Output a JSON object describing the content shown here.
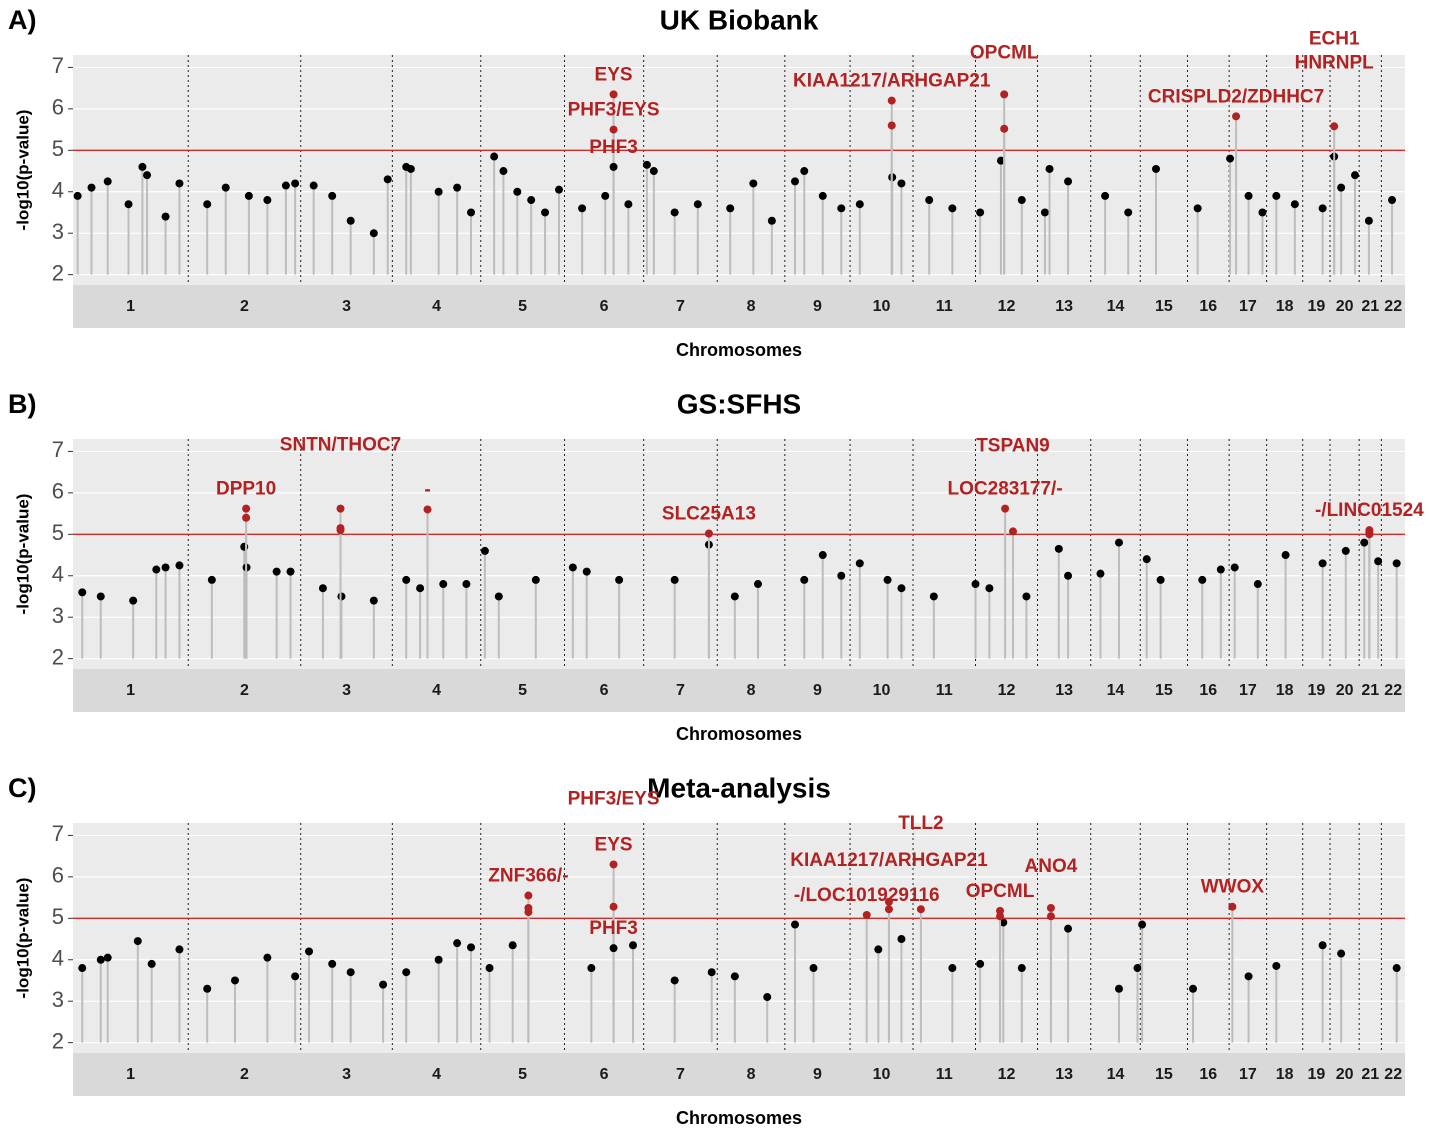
{
  "chart_data": [
    {
      "type": "manhattan",
      "panel_label": "A)",
      "title": "UK Biobank",
      "ylabel": "-log10(p-value)",
      "xlabel": "Chromosomes",
      "xlim": [
        0,
        2878
      ],
      "ylim": [
        1.75,
        7.3
      ],
      "yticks": [
        2,
        3,
        4,
        5,
        6,
        7
      ],
      "xticks": [
        {
          "value": 124.5,
          "label": "1"
        },
        {
          "value": 370.5,
          "label": "2"
        },
        {
          "value": 591,
          "label": "3"
        },
        {
          "value": 785.5,
          "label": "4"
        },
        {
          "value": 971.5,
          "label": "5"
        },
        {
          "value": 1147.5,
          "label": "6"
        },
        {
          "value": 1312.5,
          "label": "7"
        },
        {
          "value": 1465,
          "label": "8"
        },
        {
          "value": 1608.5,
          "label": "9"
        },
        {
          "value": 1747,
          "label": "10"
        },
        {
          "value": 1882.5,
          "label": "11"
        },
        {
          "value": 2017,
          "label": "12"
        },
        {
          "value": 2141.5,
          "label": "13"
        },
        {
          "value": 2252.5,
          "label": "14"
        },
        {
          "value": 2357,
          "label": "15"
        },
        {
          "value": 2453,
          "label": "16"
        },
        {
          "value": 2538.5,
          "label": "17"
        },
        {
          "value": 2618,
          "label": "18"
        },
        {
          "value": 2686.5,
          "label": "19"
        },
        {
          "value": 2747.5,
          "label": "20"
        },
        {
          "value": 2803,
          "label": "21"
        },
        {
          "value": 2852.5,
          "label": "22"
        }
      ],
      "chromosome_boundaries": [
        249,
        492,
        690,
        881,
        1062,
        1233,
        1392,
        1538,
        1679,
        1815,
        1950,
        2084,
        2199,
        2306,
        2408,
        2498,
        2579,
        2657,
        2716,
        2779,
        2827
      ],
      "threshold": 5,
      "threshold_color": "#d22b2b",
      "color": "#000000",
      "highlight_color": "#b22222",
      "points": {
        "x": [
          10,
          40,
          75,
          120,
          150,
          160,
          200,
          230,
          290,
          330,
          380,
          420,
          460,
          480,
          520,
          560,
          600,
          650,
          680,
          720,
          730,
          790,
          830,
          860,
          910,
          930,
          960,
          990,
          1020,
          1050,
          1100,
          1150,
          1200,
          1240,
          1255,
          1300,
          1350,
          1420,
          1470,
          1510,
          1560,
          1580,
          1620,
          1660,
          1700,
          1770,
          1790,
          1850,
          1900,
          1960,
          2005,
          2050,
          2100,
          2110,
          2150,
          2230,
          2280,
          2340,
          2430,
          2500,
          2540,
          2570,
          2600,
          2640,
          2700,
          2725,
          2740,
          2770,
          2800,
          2850
        ],
        "values": [
          3.9,
          4.1,
          4.25,
          3.7,
          4.6,
          4.4,
          3.4,
          4.2,
          3.7,
          4.1,
          3.9,
          3.8,
          4.15,
          4.2,
          4.15,
          3.9,
          3.3,
          3.0,
          4.3,
          4.6,
          4.55,
          4.0,
          4.1,
          3.5,
          4.85,
          4.5,
          4.0,
          3.8,
          3.5,
          4.05,
          3.6,
          3.9,
          3.7,
          4.65,
          4.5,
          3.5,
          3.7,
          3.6,
          4.2,
          3.3,
          4.25,
          4.5,
          3.9,
          3.6,
          3.7,
          4.35,
          4.2,
          3.8,
          3.6,
          3.5,
          4.75,
          3.8,
          3.5,
          4.55,
          4.25,
          3.9,
          3.5,
          4.55,
          3.6,
          4.8,
          3.9,
          3.5,
          3.9,
          3.7,
          3.6,
          4.85,
          4.1,
          4.4,
          3.3,
          3.8
        ]
      },
      "hits": [
        {
          "label": "EYS",
          "x": 1168,
          "y": 6.35
        },
        {
          "label": "PHF3/EYS",
          "x": 1168,
          "y": 5.5
        },
        {
          "label": "PHF3",
          "x": 1168,
          "y": 4.6
        },
        {
          "label": "KIAA1217/ARHGAP21",
          "x": 1769,
          "y": 6.2
        },
        {
          "label": null,
          "x": 1769,
          "y": 5.6
        },
        {
          "label": "OPCML",
          "x": 2012,
          "y": 6.35
        },
        {
          "label": null,
          "x": 2012,
          "y": 5.52
        },
        {
          "label": "CRISPLD2/ZDHHC7",
          "x": 2513,
          "y": 5.82
        },
        {
          "label": [
            "ECH1",
            "HNRNPL"
          ],
          "x": 2725,
          "y": 5.58
        }
      ]
    },
    {
      "type": "manhattan",
      "panel_label": "B)",
      "title": "GS:SFHS",
      "ylabel": "-log10(p-value)",
      "xlabel": "Chromosomes",
      "xlim": [
        0,
        2878
      ],
      "ylim": [
        1.75,
        7.3
      ],
      "yticks": [
        2,
        3,
        4,
        5,
        6,
        7
      ],
      "xticks": [
        {
          "value": 124.5,
          "label": "1"
        },
        {
          "value": 370.5,
          "label": "2"
        },
        {
          "value": 591,
          "label": "3"
        },
        {
          "value": 785.5,
          "label": "4"
        },
        {
          "value": 971.5,
          "label": "5"
        },
        {
          "value": 1147.5,
          "label": "6"
        },
        {
          "value": 1312.5,
          "label": "7"
        },
        {
          "value": 1465,
          "label": "8"
        },
        {
          "value": 1608.5,
          "label": "9"
        },
        {
          "value": 1747,
          "label": "10"
        },
        {
          "value": 1882.5,
          "label": "11"
        },
        {
          "value": 2017,
          "label": "12"
        },
        {
          "value": 2141.5,
          "label": "13"
        },
        {
          "value": 2252.5,
          "label": "14"
        },
        {
          "value": 2357,
          "label": "15"
        },
        {
          "value": 2453,
          "label": "16"
        },
        {
          "value": 2538.5,
          "label": "17"
        },
        {
          "value": 2618,
          "label": "18"
        },
        {
          "value": 2686.5,
          "label": "19"
        },
        {
          "value": 2747.5,
          "label": "20"
        },
        {
          "value": 2803,
          "label": "21"
        },
        {
          "value": 2852.5,
          "label": "22"
        }
      ],
      "chromosome_boundaries": [
        249,
        492,
        690,
        881,
        1062,
        1233,
        1392,
        1538,
        1679,
        1815,
        1950,
        2084,
        2199,
        2306,
        2408,
        2498,
        2579,
        2657,
        2716,
        2779,
        2827
      ],
      "threshold": 5,
      "threshold_color": "#d22b2b",
      "color": "#000000",
      "highlight_color": "#b22222",
      "points": {
        "x": [
          20,
          60,
          130,
          180,
          200,
          230,
          300,
          370,
          375,
          440,
          470,
          540,
          580,
          650,
          720,
          750,
          800,
          850,
          890,
          920,
          1000,
          1080,
          1110,
          1180,
          1300,
          1374,
          1430,
          1480,
          1580,
          1620,
          1660,
          1700,
          1760,
          1790,
          1860,
          1950,
          1980,
          2060,
          2130,
          2150,
          2220,
          2260,
          2320,
          2350,
          2440,
          2480,
          2510,
          2560,
          2620,
          2700,
          2750,
          2790,
          2820,
          2860
        ],
        "values": [
          3.6,
          3.5,
          3.4,
          4.15,
          4.2,
          4.25,
          3.9,
          4.7,
          4.2,
          4.1,
          4.1,
          3.7,
          3.5,
          3.4,
          3.9,
          3.7,
          3.8,
          3.8,
          4.6,
          3.5,
          3.9,
          4.2,
          4.1,
          3.9,
          3.9,
          4.75,
          3.5,
          3.8,
          3.9,
          4.5,
          4.0,
          4.3,
          3.9,
          3.7,
          3.5,
          3.8,
          3.7,
          3.5,
          4.65,
          4.0,
          4.05,
          4.8,
          4.4,
          3.9,
          3.9,
          4.15,
          4.2,
          3.8,
          4.5,
          4.3,
          4.6,
          4.8,
          4.35,
          4.3
        ]
      },
      "hits": [
        {
          "label": "DPP10",
          "x": 374,
          "y": 5.62
        },
        {
          "label": null,
          "x": 374,
          "y": 5.4
        },
        {
          "label": "SNTN/THOC7",
          "x": 578,
          "y": 5.62
        },
        {
          "label": null,
          "x": 578,
          "y": 5.15
        },
        {
          "label": null,
          "x": 578,
          "y": 5.1
        },
        {
          "label": "-",
          "x": 766,
          "y": 5.6
        },
        {
          "label": "SLC25A13",
          "x": 1374,
          "y": 5.02
        },
        {
          "label": "LOC283177/-",
          "x": 2014,
          "y": 5.62
        },
        {
          "label": "TSPAN9",
          "x": 2031,
          "y": 5.07
        },
        {
          "label": "-/LINC01524",
          "x": 2801,
          "y": 5.1
        },
        {
          "label": null,
          "x": 2801,
          "y": 5.05
        },
        {
          "label": null,
          "x": 2801,
          "y": 5.0
        }
      ]
    },
    {
      "type": "manhattan",
      "panel_label": "C)",
      "title": "Meta-analysis",
      "ylabel": "-log10(p-value)",
      "xlabel": "Chromosomes",
      "xlim": [
        0,
        2878
      ],
      "ylim": [
        1.75,
        7.3
      ],
      "yticks": [
        2,
        3,
        4,
        5,
        6,
        7
      ],
      "xticks": [
        {
          "value": 124.5,
          "label": "1"
        },
        {
          "value": 370.5,
          "label": "2"
        },
        {
          "value": 591,
          "label": "3"
        },
        {
          "value": 785.5,
          "label": "4"
        },
        {
          "value": 971.5,
          "label": "5"
        },
        {
          "value": 1147.5,
          "label": "6"
        },
        {
          "value": 1312.5,
          "label": "7"
        },
        {
          "value": 1465,
          "label": "8"
        },
        {
          "value": 1608.5,
          "label": "9"
        },
        {
          "value": 1747,
          "label": "10"
        },
        {
          "value": 1882.5,
          "label": "11"
        },
        {
          "value": 2017,
          "label": "12"
        },
        {
          "value": 2141.5,
          "label": "13"
        },
        {
          "value": 2252.5,
          "label": "14"
        },
        {
          "value": 2357,
          "label": "15"
        },
        {
          "value": 2453,
          "label": "16"
        },
        {
          "value": 2538.5,
          "label": "17"
        },
        {
          "value": 2618,
          "label": "18"
        },
        {
          "value": 2686.5,
          "label": "19"
        },
        {
          "value": 2747.5,
          "label": "20"
        },
        {
          "value": 2803,
          "label": "21"
        },
        {
          "value": 2852.5,
          "label": "22"
        }
      ],
      "chromosome_boundaries": [
        249,
        492,
        690,
        881,
        1062,
        1233,
        1392,
        1538,
        1679,
        1815,
        1950,
        2084,
        2199,
        2306,
        2408,
        2498,
        2579,
        2657,
        2716,
        2779,
        2827
      ],
      "threshold": 5,
      "threshold_color": "#d22b2b",
      "color": "#000000",
      "highlight_color": "#b22222",
      "points": {
        "x": [
          20,
          60,
          75,
          140,
          170,
          230,
          290,
          350,
          420,
          480,
          510,
          560,
          600,
          670,
          720,
          790,
          830,
          860,
          900,
          950,
          1120,
          1210,
          1300,
          1380,
          1430,
          1500,
          1560,
          1600,
          1740,
          1790,
          1900,
          1960,
          2010,
          2050,
          2150,
          2260,
          2300,
          2310,
          2420,
          2540,
          2600,
          2700,
          2740,
          2860
        ],
        "values": [
          3.8,
          4.0,
          4.05,
          4.45,
          3.9,
          4.25,
          3.3,
          3.5,
          4.05,
          3.6,
          4.2,
          3.9,
          3.7,
          3.4,
          3.7,
          4.0,
          4.4,
          4.3,
          3.8,
          4.35,
          3.8,
          4.35,
          3.5,
          3.7,
          3.6,
          3.1,
          4.85,
          3.8,
          4.25,
          4.5,
          3.8,
          3.9,
          4.9,
          3.8,
          4.75,
          3.3,
          3.8,
          4.85,
          3.3,
          3.6,
          3.85,
          4.35,
          4.15,
          3.8
        ]
      },
      "hits": [
        {
          "label": "ZNF366/-",
          "x": 984,
          "y": 5.55
        },
        {
          "label": null,
          "x": 984,
          "y": 5.25
        },
        {
          "label": null,
          "x": 984,
          "y": 5.15
        },
        {
          "label": "EYS",
          "x": 1168,
          "y": 6.3
        },
        {
          "label": "PHF3/EYS",
          "x": 1168,
          "y": 5.28
        },
        {
          "label": "PHF3",
          "x": 1168,
          "y": 4.28
        },
        {
          "label": "-/LOC101929116",
          "x": 1715,
          "y": 5.08
        },
        {
          "label": "KIAA1217/ARHGAP21",
          "x": 1763,
          "y": 5.4
        },
        {
          "label": null,
          "x": 1763,
          "y": 5.22
        },
        {
          "label": "TLL2",
          "x": 1832,
          "y": 5.22
        },
        {
          "label": "OPCML",
          "x": 2003,
          "y": 5.18
        },
        {
          "label": null,
          "x": 2003,
          "y": 5.05
        },
        {
          "label": "ANO4",
          "x": 2113,
          "y": 5.25
        },
        {
          "label": null,
          "x": 2113,
          "y": 5.05
        },
        {
          "label": "WWOX",
          "x": 2505,
          "y": 5.28
        }
      ]
    }
  ]
}
